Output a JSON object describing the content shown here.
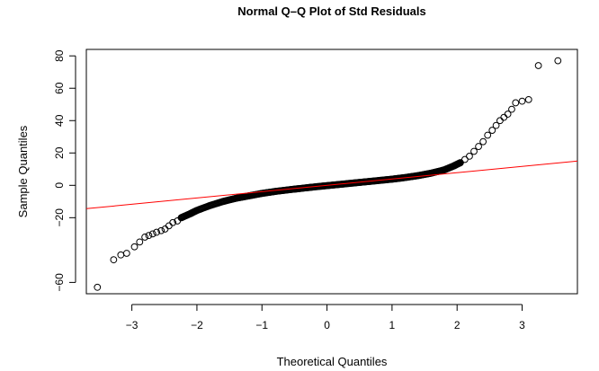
{
  "chart_data": {
    "type": "scatter",
    "title": "Normal Q–Q Plot of Std Residuals",
    "xlabel": "Theoretical Quantiles",
    "ylabel": "Sample Quantiles",
    "xlim": [
      -3.7,
      3.85
    ],
    "ylim": [
      -67,
      84
    ],
    "x_ticks": [
      -3,
      -2,
      -1,
      0,
      1,
      2,
      3
    ],
    "x_tick_labels": [
      "−3",
      "−2",
      "−1",
      "0",
      "1",
      "2",
      "3"
    ],
    "y_ticks": [
      -60,
      -20,
      0,
      20,
      40,
      60,
      80
    ],
    "y_tick_labels": [
      "−60",
      "−20",
      "0",
      "20",
      "40",
      "60",
      "80"
    ],
    "grid": false,
    "series": [
      {
        "points": [
          [
            -3.53,
            -63
          ],
          [
            -3.28,
            -46
          ],
          [
            -3.17,
            -43
          ],
          [
            -3.08,
            -42
          ],
          [
            -2.96,
            -38
          ],
          [
            -2.88,
            -35
          ],
          [
            -2.8,
            -32
          ],
          [
            -2.74,
            -31
          ],
          [
            -2.68,
            -30
          ],
          [
            -2.62,
            -29
          ],
          [
            -2.55,
            -28
          ],
          [
            -2.49,
            -27
          ],
          [
            -2.43,
            -25
          ],
          [
            -2.37,
            -23
          ],
          [
            -2.3,
            -22
          ],
          [
            -2.24,
            -20
          ],
          [
            2.05,
            14
          ],
          [
            2.12,
            16
          ],
          [
            2.19,
            18
          ],
          [
            2.26,
            21
          ],
          [
            2.33,
            24
          ],
          [
            2.4,
            27
          ],
          [
            2.47,
            31
          ],
          [
            2.54,
            34
          ],
          [
            2.6,
            37
          ],
          [
            2.66,
            40
          ],
          [
            2.72,
            42
          ],
          [
            2.78,
            44
          ],
          [
            2.84,
            47
          ],
          [
            2.9,
            51
          ],
          [
            3.0,
            52
          ],
          [
            3.1,
            53
          ],
          [
            3.25,
            74
          ],
          [
            3.55,
            77
          ]
        ],
        "dense_curve": [
          [
            -2.24,
            -20
          ],
          [
            -2.1,
            -17.5
          ],
          [
            -2.0,
            -15.5
          ],
          [
            -1.8,
            -12.5
          ],
          [
            -1.6,
            -10
          ],
          [
            -1.4,
            -8
          ],
          [
            -1.2,
            -6.5
          ],
          [
            -1.0,
            -5
          ],
          [
            -0.8,
            -3.8
          ],
          [
            -0.6,
            -2.8
          ],
          [
            -0.4,
            -1.9
          ],
          [
            -0.2,
            -1.0
          ],
          [
            0.0,
            -0.2
          ],
          [
            0.2,
            0.6
          ],
          [
            0.4,
            1.4
          ],
          [
            0.6,
            2.2
          ],
          [
            0.8,
            3.0
          ],
          [
            1.0,
            3.8
          ],
          [
            1.2,
            4.8
          ],
          [
            1.4,
            6.0
          ],
          [
            1.6,
            7.5
          ],
          [
            1.8,
            9.5
          ],
          [
            1.95,
            12
          ],
          [
            2.05,
            14
          ]
        ]
      }
    ],
    "reference_line": {
      "intercept": 0,
      "slope": 3.9,
      "color": "#ff0000"
    },
    "colors": {
      "points": "#000000",
      "reference_line": "#ff0000",
      "axes": "#000000"
    }
  }
}
